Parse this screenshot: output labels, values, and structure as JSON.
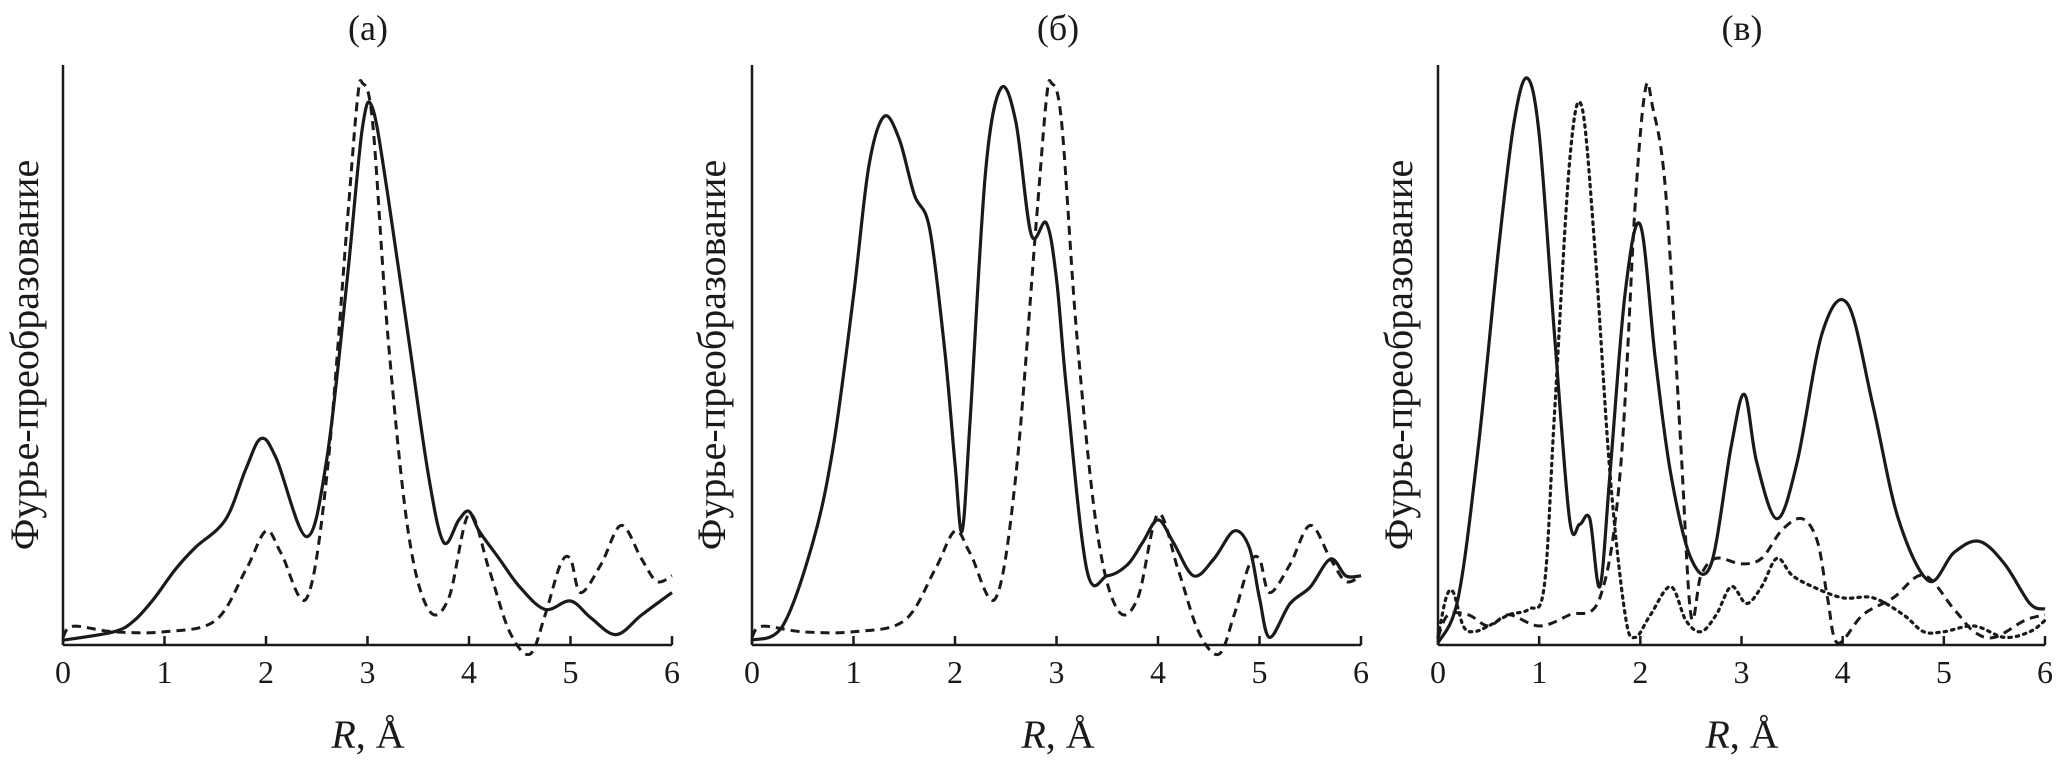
{
  "figure": {
    "background": "#ffffff",
    "line_color": "#1a1a1a"
  },
  "chart_data": [
    {
      "type": "line",
      "title": "(а)",
      "xlabel_italic": "R",
      "xlabel_rest": ", Å",
      "ylabel": "Фурье-преобразование",
      "xlim": [
        0,
        6
      ],
      "ylim": [
        0,
        1
      ],
      "xticks": [
        "0",
        "1",
        "2",
        "3",
        "4",
        "5",
        "6"
      ],
      "series": [
        {
          "style": "solid",
          "x": [
            0,
            0.5,
            0.7,
            0.9,
            1.1,
            1.3,
            1.6,
            1.8,
            1.95,
            2.1,
            2.4,
            2.6,
            2.8,
            2.95,
            3.05,
            3.2,
            3.4,
            3.6,
            3.75,
            3.9,
            4.0,
            4.1,
            4.3,
            4.5,
            4.75,
            5.0,
            5.2,
            5.45,
            5.7,
            6.0
          ],
          "y": [
            0.005,
            0.02,
            0.04,
            0.08,
            0.13,
            0.17,
            0.22,
            0.31,
            0.365,
            0.33,
            0.19,
            0.33,
            0.65,
            0.92,
            0.955,
            0.8,
            0.55,
            0.3,
            0.18,
            0.22,
            0.235,
            0.2,
            0.15,
            0.1,
            0.06,
            0.075,
            0.045,
            0.015,
            0.05,
            0.09
          ]
        },
        {
          "style": "dashed",
          "x": [
            0,
            0.1,
            0.5,
            1.0,
            1.5,
            1.8,
            2.0,
            2.15,
            2.4,
            2.6,
            2.8,
            2.9,
            2.95,
            3.05,
            3.2,
            3.4,
            3.6,
            3.8,
            4.0,
            4.2,
            4.4,
            4.6,
            4.75,
            4.9,
            5.0,
            5.1,
            5.3,
            5.5,
            5.7,
            5.85,
            6.0
          ],
          "y": [
            0.01,
            0.03,
            0.02,
            0.02,
            0.04,
            0.13,
            0.2,
            0.16,
            0.08,
            0.3,
            0.75,
            0.97,
            1.0,
            0.93,
            0.55,
            0.2,
            0.06,
            0.08,
            0.23,
            0.13,
            0.02,
            -0.02,
            0.05,
            0.14,
            0.15,
            0.09,
            0.14,
            0.21,
            0.15,
            0.11,
            0.12
          ]
        }
      ]
    },
    {
      "type": "line",
      "title": "(б)",
      "xlabel_italic": "R",
      "xlabel_rest": ", Å",
      "ylabel": "Фурье-преобразование",
      "xlim": [
        0,
        6
      ],
      "ylim": [
        0,
        1
      ],
      "xticks": [
        "0",
        "1",
        "2",
        "3",
        "4",
        "5",
        "6"
      ],
      "series": [
        {
          "style": "solid",
          "x": [
            0,
            0.3,
            0.6,
            0.8,
            1.0,
            1.15,
            1.3,
            1.45,
            1.6,
            1.75,
            1.9,
            2.0,
            2.07,
            2.15,
            2.3,
            2.45,
            2.6,
            2.75,
            2.9,
            3.0,
            3.1,
            3.3,
            3.5,
            3.7,
            3.85,
            4.0,
            4.15,
            4.35,
            4.55,
            4.75,
            4.9,
            5.0,
            5.1,
            5.3,
            5.5,
            5.7,
            5.85,
            6.0
          ],
          "y": [
            0.005,
            0.03,
            0.18,
            0.35,
            0.62,
            0.85,
            0.94,
            0.9,
            0.8,
            0.74,
            0.52,
            0.32,
            0.2,
            0.4,
            0.84,
            0.99,
            0.93,
            0.73,
            0.75,
            0.65,
            0.45,
            0.13,
            0.12,
            0.14,
            0.18,
            0.22,
            0.18,
            0.12,
            0.15,
            0.2,
            0.17,
            0.08,
            0.01,
            0.07,
            0.1,
            0.15,
            0.12,
            0.12
          ]
        },
        {
          "style": "dashed",
          "x": [
            0,
            0.1,
            0.5,
            1.0,
            1.5,
            1.8,
            2.0,
            2.15,
            2.4,
            2.6,
            2.8,
            2.9,
            2.95,
            3.05,
            3.2,
            3.4,
            3.6,
            3.8,
            4.0,
            4.2,
            4.4,
            4.6,
            4.75,
            4.9,
            5.0,
            5.1,
            5.3,
            5.5,
            5.7,
            5.85,
            6.0
          ],
          "y": [
            0.01,
            0.03,
            0.02,
            0.02,
            0.04,
            0.13,
            0.2,
            0.16,
            0.08,
            0.3,
            0.75,
            0.97,
            1.0,
            0.93,
            0.55,
            0.2,
            0.06,
            0.08,
            0.23,
            0.13,
            0.02,
            -0.02,
            0.05,
            0.14,
            0.15,
            0.09,
            0.14,
            0.21,
            0.15,
            0.11,
            0.12
          ]
        }
      ]
    },
    {
      "type": "line",
      "title": "(в)",
      "xlabel_italic": "R",
      "xlabel_rest": ", Å",
      "ylabel": "Фурье-преобразование",
      "xlim": [
        0,
        6
      ],
      "ylim": [
        0,
        1
      ],
      "xticks": [
        "0",
        "1",
        "2",
        "3",
        "4",
        "5",
        "6"
      ],
      "series": [
        {
          "style": "solid",
          "x": [
            0,
            0.2,
            0.4,
            0.6,
            0.75,
            0.88,
            1.0,
            1.15,
            1.3,
            1.4,
            1.5,
            1.6,
            1.7,
            1.85,
            2.0,
            2.15,
            2.3,
            2.5,
            2.7,
            2.9,
            3.03,
            3.15,
            3.35,
            3.55,
            3.8,
            4.05,
            4.3,
            4.55,
            4.85,
            5.1,
            5.35,
            5.6,
            5.85,
            6.0
          ],
          "y": [
            0.0,
            0.08,
            0.35,
            0.7,
            0.92,
            1.0,
            0.9,
            0.55,
            0.22,
            0.21,
            0.22,
            0.1,
            0.3,
            0.62,
            0.74,
            0.5,
            0.3,
            0.15,
            0.14,
            0.35,
            0.44,
            0.32,
            0.22,
            0.32,
            0.55,
            0.6,
            0.42,
            0.22,
            0.11,
            0.16,
            0.18,
            0.14,
            0.07,
            0.06
          ]
        },
        {
          "style": "dashed",
          "x": [
            0,
            0.1,
            0.3,
            0.5,
            0.7,
            1.0,
            1.3,
            1.6,
            1.8,
            1.95,
            2.05,
            2.12,
            2.25,
            2.4,
            2.5,
            2.6,
            2.75,
            3.0,
            3.2,
            3.4,
            3.6,
            3.75,
            3.85,
            3.95,
            4.2,
            4.5,
            4.8,
            5.1,
            5.3,
            5.5,
            5.8,
            6.0
          ],
          "y": [
            0.01,
            0.05,
            0.05,
            0.03,
            0.05,
            0.03,
            0.05,
            0.08,
            0.3,
            0.78,
            0.98,
            0.95,
            0.8,
            0.35,
            0.05,
            0.12,
            0.15,
            0.14,
            0.15,
            0.2,
            0.22,
            0.18,
            0.08,
            0.0,
            0.05,
            0.08,
            0.12,
            0.06,
            0.02,
            0.01,
            0.04,
            0.05
          ]
        },
        {
          "style": "dotted",
          "x": [
            0,
            0.08,
            0.15,
            0.25,
            0.35,
            0.5,
            0.7,
            0.9,
            1.05,
            1.15,
            1.3,
            1.42,
            1.55,
            1.7,
            1.85,
            1.95,
            2.1,
            2.3,
            2.45,
            2.6,
            2.75,
            2.9,
            3.05,
            3.2,
            3.35,
            3.5,
            3.7,
            4.0,
            4.3,
            4.6,
            4.8,
            5.0,
            5.3,
            5.6,
            5.85,
            6.0
          ],
          "y": [
            0.01,
            0.08,
            0.09,
            0.03,
            0.02,
            0.03,
            0.05,
            0.06,
            0.1,
            0.4,
            0.85,
            0.95,
            0.7,
            0.3,
            0.05,
            0.01,
            0.05,
            0.1,
            0.04,
            0.02,
            0.05,
            0.1,
            0.07,
            0.1,
            0.15,
            0.12,
            0.1,
            0.08,
            0.08,
            0.05,
            0.02,
            0.02,
            0.03,
            0.01,
            0.02,
            0.04
          ]
        }
      ]
    }
  ]
}
